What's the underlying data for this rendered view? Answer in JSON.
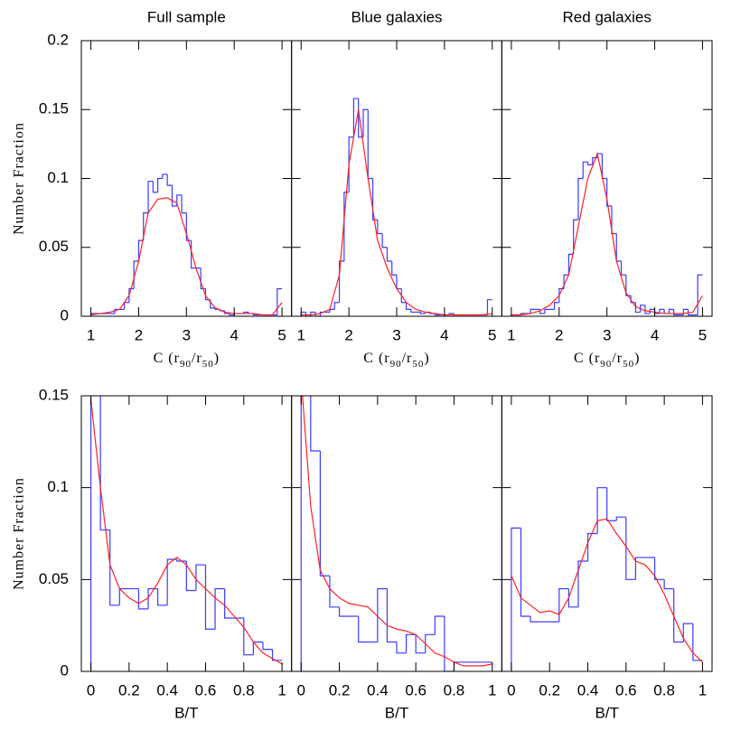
{
  "chart_data": [
    {
      "type": "histogram",
      "title": "Full sample",
      "ylabel": "Number Fraction",
      "xlabel": [
        {
          "text": "C (r"
        },
        {
          "text": "90",
          "sub": true
        },
        {
          "text": "/r"
        },
        {
          "text": "50",
          "sub": true
        },
        {
          "text": ")"
        }
      ],
      "show_ytick_labels": true,
      "color": "#3b3bff",
      "xlim": [
        0.8,
        5.2
      ],
      "ylim": [
        0,
        0.2
      ],
      "xticks": [
        1,
        2,
        3,
        4,
        5
      ],
      "yticks": [
        0,
        0.05,
        0.1,
        0.15,
        0.2
      ],
      "bins": [
        1.0,
        1.1,
        1.2,
        1.3,
        1.4,
        1.5,
        1.6,
        1.7,
        1.8,
        1.9,
        2.0,
        2.1,
        2.2,
        2.3,
        2.4,
        2.5,
        2.6,
        2.7,
        2.8,
        2.9,
        3.0,
        3.1,
        3.2,
        3.3,
        3.4,
        3.5,
        3.6,
        3.7,
        3.8,
        3.9,
        4.0,
        4.1,
        4.2,
        4.3,
        4.4,
        4.5,
        4.6,
        4.7,
        4.8,
        4.9,
        5.0
      ],
      "counts": [
        0.002,
        0.002,
        0.002,
        0.002,
        0.002,
        0.005,
        0.005,
        0.01,
        0.02,
        0.04,
        0.055,
        0.075,
        0.098,
        0.09,
        0.1,
        0.103,
        0.095,
        0.08,
        0.088,
        0.075,
        0.055,
        0.035,
        0.035,
        0.02,
        0.012,
        0.006,
        0.005,
        0.004,
        0.002,
        0.001,
        0.002,
        0.002,
        0.003,
        0.002,
        0.001,
        0.001,
        0.001,
        0.001,
        0.001,
        0.02
      ],
      "line": {
        "color": "#ff2020",
        "x": [
          1.0,
          1.2,
          1.4,
          1.6,
          1.8,
          2.0,
          2.2,
          2.4,
          2.6,
          2.8,
          3.0,
          3.2,
          3.4,
          3.6,
          3.8,
          4.0,
          4.2,
          4.4,
          4.6,
          4.8,
          5.0
        ],
        "values": [
          0.001,
          0.002,
          0.003,
          0.005,
          0.015,
          0.04,
          0.075,
          0.085,
          0.086,
          0.082,
          0.06,
          0.035,
          0.015,
          0.006,
          0.003,
          0.002,
          0.002,
          0.002,
          0.001,
          0.001,
          0.01
        ]
      }
    },
    {
      "type": "histogram",
      "title": "Blue galaxies",
      "xlabel": [
        {
          "text": "C (r"
        },
        {
          "text": "90",
          "sub": true
        },
        {
          "text": "/r"
        },
        {
          "text": "50",
          "sub": true
        },
        {
          "text": ")"
        }
      ],
      "show_ytick_labels": false,
      "color": "#3b3bff",
      "xlim": [
        0.8,
        5.2
      ],
      "ylim": [
        0,
        0.2
      ],
      "xticks": [
        1,
        2,
        3,
        4,
        5
      ],
      "yticks": [
        0,
        0.05,
        0.1,
        0.15,
        0.2
      ],
      "bins": [
        1.0,
        1.1,
        1.2,
        1.3,
        1.4,
        1.5,
        1.6,
        1.7,
        1.8,
        1.9,
        2.0,
        2.1,
        2.2,
        2.3,
        2.4,
        2.5,
        2.6,
        2.7,
        2.8,
        2.9,
        3.0,
        3.1,
        3.2,
        3.3,
        3.4,
        3.5,
        3.6,
        3.7,
        3.8,
        3.9,
        4.0,
        4.1,
        4.2,
        4.3,
        4.4,
        4.5,
        4.6,
        4.7,
        4.8,
        4.9,
        5.0
      ],
      "counts": [
        0.003,
        0,
        0.003,
        0,
        0.003,
        0.003,
        0.005,
        0.01,
        0.04,
        0.09,
        0.13,
        0.158,
        0.13,
        0.15,
        0.1,
        0.07,
        0.06,
        0.05,
        0.04,
        0.03,
        0.02,
        0.01,
        0.005,
        0.003,
        0.003,
        0.002,
        0.003,
        0.002,
        0.001,
        0.001,
        0.001,
        0.002,
        0.001,
        0.001,
        0.001,
        0.001,
        0.001,
        0.001,
        0.001,
        0.012
      ],
      "line": {
        "color": "#ff2020",
        "x": [
          1.0,
          1.2,
          1.4,
          1.6,
          1.8,
          2.0,
          2.2,
          2.4,
          2.6,
          2.8,
          3.0,
          3.2,
          3.4,
          3.6,
          3.8,
          4.0,
          4.2,
          4.4,
          4.6,
          4.8,
          5.0
        ],
        "values": [
          0.001,
          0.001,
          0.002,
          0.005,
          0.03,
          0.11,
          0.15,
          0.1,
          0.055,
          0.035,
          0.02,
          0.01,
          0.005,
          0.003,
          0.002,
          0.001,
          0.001,
          0.001,
          0.001,
          0.001,
          0.002
        ]
      }
    },
    {
      "type": "histogram",
      "title": "Red galaxies",
      "xlabel": [
        {
          "text": "C (r"
        },
        {
          "text": "90",
          "sub": true
        },
        {
          "text": "/r"
        },
        {
          "text": "50",
          "sub": true
        },
        {
          "text": ")"
        }
      ],
      "show_ytick_labels": false,
      "color": "#3b3bff",
      "xlim": [
        0.8,
        5.2
      ],
      "ylim": [
        0,
        0.2
      ],
      "xticks": [
        1,
        2,
        3,
        4,
        5
      ],
      "yticks": [
        0,
        0.05,
        0.1,
        0.15,
        0.2
      ],
      "bins": [
        1.0,
        1.1,
        1.2,
        1.3,
        1.4,
        1.5,
        1.6,
        1.7,
        1.8,
        1.9,
        2.0,
        2.1,
        2.2,
        2.3,
        2.4,
        2.5,
        2.6,
        2.7,
        2.8,
        2.9,
        3.0,
        3.1,
        3.2,
        3.3,
        3.4,
        3.5,
        3.6,
        3.7,
        3.8,
        3.9,
        4.0,
        4.1,
        4.2,
        4.3,
        4.4,
        4.5,
        4.6,
        4.7,
        4.8,
        4.9,
        5.0
      ],
      "counts": [
        0.001,
        0.001,
        0.002,
        0.002,
        0.005,
        0.005,
        0.002,
        0.005,
        0.005,
        0.01,
        0.02,
        0.03,
        0.045,
        0.07,
        0.1,
        0.112,
        0.11,
        0.115,
        0.118,
        0.1,
        0.08,
        0.06,
        0.04,
        0.03,
        0.015,
        0.01,
        0.003,
        0.008,
        0.002,
        0.005,
        0.002,
        0.005,
        0.002,
        0.005,
        0.001,
        0.001,
        0.005,
        0.001,
        0.001,
        0.03
      ],
      "line": {
        "color": "#ff2020",
        "x": [
          1.0,
          1.2,
          1.4,
          1.6,
          1.8,
          2.0,
          2.2,
          2.4,
          2.6,
          2.8,
          3.0,
          3.2,
          3.4,
          3.6,
          3.8,
          4.0,
          4.2,
          4.4,
          4.6,
          4.8,
          5.0
        ],
        "values": [
          0.001,
          0.001,
          0.002,
          0.004,
          0.008,
          0.015,
          0.03,
          0.065,
          0.1,
          0.118,
          0.085,
          0.04,
          0.017,
          0.007,
          0.004,
          0.003,
          0.002,
          0.002,
          0.002,
          0.003,
          0.015
        ]
      }
    },
    {
      "type": "histogram",
      "ylabel": "Number Fraction",
      "xlabel": "B/T",
      "show_ytick_labels": true,
      "color": "#3b3bff",
      "xlim": [
        -0.05,
        1.05
      ],
      "ylim": [
        0,
        0.15
      ],
      "xticks": [
        0,
        0.2,
        0.4,
        0.6,
        0.8,
        1
      ],
      "yticks": [
        0,
        0.05,
        0.1,
        0.15
      ],
      "bins": [
        0,
        0.05,
        0.1,
        0.15,
        0.2,
        0.25,
        0.3,
        0.35,
        0.4,
        0.45,
        0.5,
        0.55,
        0.6,
        0.65,
        0.7,
        0.75,
        0.8,
        0.85,
        0.9,
        0.95,
        1
      ],
      "counts": [
        0.16,
        0.077,
        0.036,
        0.045,
        0.045,
        0.034,
        0.045,
        0.036,
        0.061,
        0.06,
        0.044,
        0.058,
        0.023,
        0.045,
        0.029,
        0.029,
        0.009,
        0.016,
        0.012,
        0.006
      ],
      "line": {
        "color": "#ff2020",
        "x": [
          0,
          0.05,
          0.1,
          0.15,
          0.2,
          0.25,
          0.3,
          0.35,
          0.4,
          0.45,
          0.5,
          0.55,
          0.6,
          0.65,
          0.7,
          0.75,
          0.8,
          0.85,
          0.9,
          0.95,
          1
        ],
        "values": [
          0.148,
          0.1,
          0.058,
          0.045,
          0.04,
          0.037,
          0.04,
          0.048,
          0.058,
          0.062,
          0.058,
          0.05,
          0.045,
          0.04,
          0.036,
          0.03,
          0.024,
          0.016,
          0.01,
          0.007,
          0.004
        ]
      }
    },
    {
      "type": "histogram",
      "xlabel": "B/T",
      "show_ytick_labels": false,
      "color": "#3b3bff",
      "xlim": [
        -0.05,
        1.05
      ],
      "ylim": [
        0,
        0.15
      ],
      "xticks": [
        0,
        0.2,
        0.4,
        0.6,
        0.8,
        1
      ],
      "yticks": [
        0,
        0.05,
        0.1,
        0.15
      ],
      "bins": [
        0,
        0.05,
        0.1,
        0.15,
        0.2,
        0.25,
        0.3,
        0.35,
        0.4,
        0.45,
        0.5,
        0.55,
        0.6,
        0.65,
        0.7,
        0.75,
        0.8,
        0.85,
        0.9,
        0.95,
        1
      ],
      "counts": [
        0.16,
        0.12,
        0.052,
        0.035,
        0.03,
        0.03,
        0.016,
        0.016,
        0.045,
        0.016,
        0.01,
        0.02,
        0.01,
        0.02,
        0.03,
        0,
        0.005,
        0.005,
        0.005,
        0.005
      ],
      "line": {
        "color": "#ff2020",
        "x": [
          0,
          0.05,
          0.1,
          0.15,
          0.2,
          0.25,
          0.3,
          0.35,
          0.4,
          0.45,
          0.5,
          0.55,
          0.6,
          0.65,
          0.7,
          0.75,
          0.8,
          0.85,
          0.9,
          0.95,
          1
        ],
        "values": [
          0.16,
          0.09,
          0.055,
          0.045,
          0.04,
          0.037,
          0.036,
          0.035,
          0.03,
          0.025,
          0.023,
          0.022,
          0.02,
          0.015,
          0.01,
          0.008,
          0.005,
          0.003,
          0.003,
          0.003,
          0.004
        ]
      }
    },
    {
      "type": "histogram",
      "xlabel": "B/T",
      "show_ytick_labels": false,
      "color": "#3b3bff",
      "xlim": [
        -0.05,
        1.05
      ],
      "ylim": [
        0,
        0.15
      ],
      "xticks": [
        0,
        0.2,
        0.4,
        0.6,
        0.8,
        1
      ],
      "yticks": [
        0,
        0.05,
        0.1,
        0.15
      ],
      "bins": [
        0,
        0.05,
        0.1,
        0.15,
        0.2,
        0.25,
        0.3,
        0.35,
        0.4,
        0.45,
        0.5,
        0.55,
        0.6,
        0.65,
        0.7,
        0.75,
        0.8,
        0.85,
        0.9,
        0.95,
        1
      ],
      "counts": [
        0.078,
        0.03,
        0.027,
        0.027,
        0.027,
        0.045,
        0.035,
        0.06,
        0.075,
        0.1,
        0.082,
        0.084,
        0.05,
        0.062,
        0.062,
        0.05,
        0.045,
        0.016,
        0.026,
        0.006
      ],
      "line": {
        "color": "#ff2020",
        "x": [
          0,
          0.05,
          0.1,
          0.15,
          0.2,
          0.25,
          0.3,
          0.35,
          0.4,
          0.45,
          0.5,
          0.55,
          0.6,
          0.65,
          0.7,
          0.75,
          0.8,
          0.85,
          0.9,
          0.95,
          1
        ],
        "values": [
          0.052,
          0.04,
          0.036,
          0.032,
          0.033,
          0.031,
          0.04,
          0.055,
          0.07,
          0.082,
          0.083,
          0.075,
          0.068,
          0.06,
          0.058,
          0.052,
          0.042,
          0.03,
          0.018,
          0.01,
          0.005
        ]
      }
    }
  ]
}
